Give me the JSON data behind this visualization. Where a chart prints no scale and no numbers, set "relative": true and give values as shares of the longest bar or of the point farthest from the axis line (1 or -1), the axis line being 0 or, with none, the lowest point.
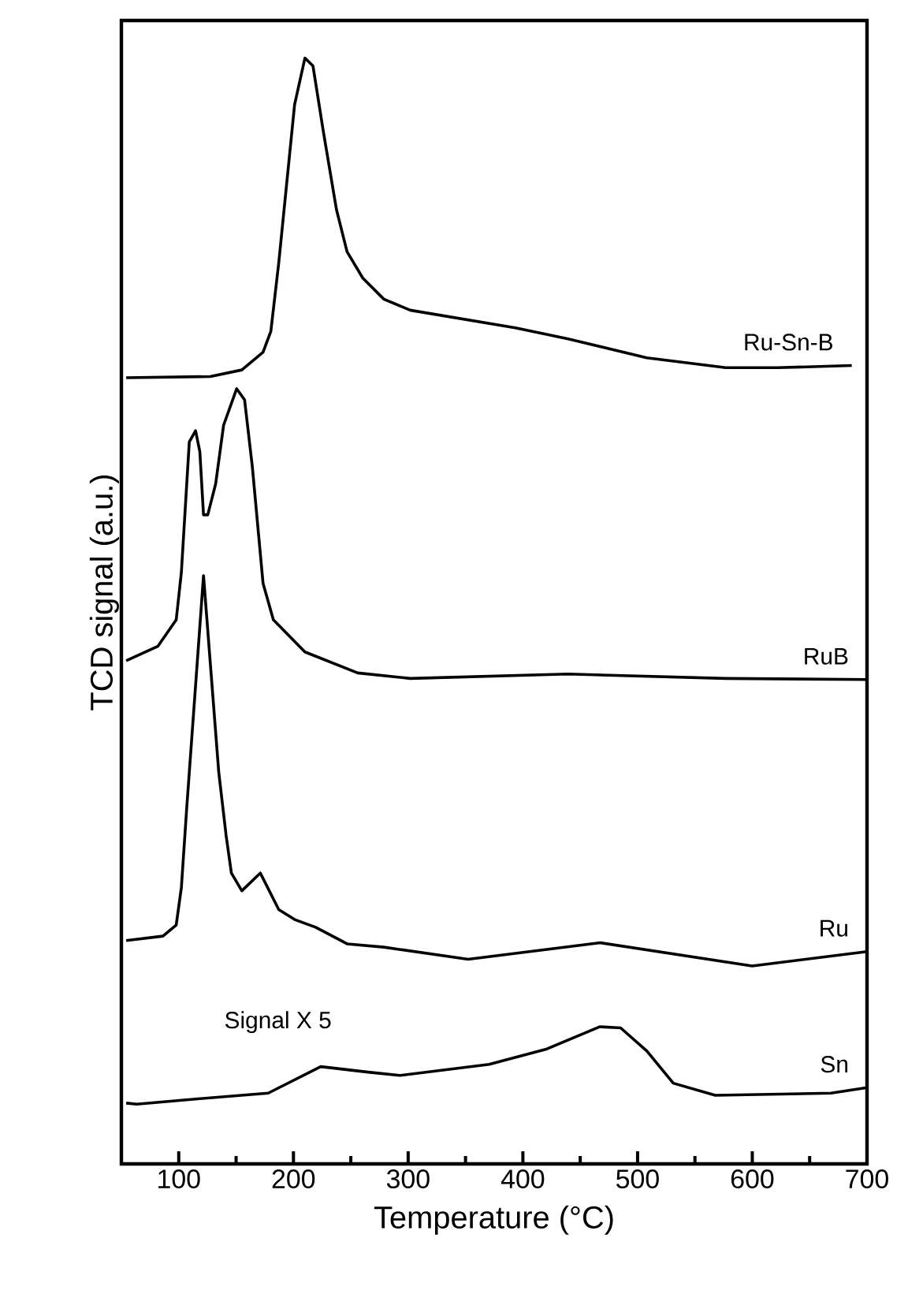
{
  "chart_data": {
    "type": "line",
    "relative": true,
    "xlabel": "Temperature (°C)",
    "ylabel": "TCD signal (a.u.)",
    "xlim": [
      50,
      700
    ],
    "xticks": [
      100,
      200,
      300,
      400,
      500,
      600,
      700
    ],
    "annotations": [
      "Signal X 5"
    ],
    "series": [
      {
        "name": "Ru-Sn-B",
        "color": "#000000",
        "x": [
          54.2,
          127.5,
          155,
          173.5,
          180.3,
          187.2,
          201,
          210,
          217,
          226,
          237.5,
          246.7,
          260.5,
          278.8,
          301.8,
          393.5,
          439.4,
          508,
          576.9,
          622,
          686.7
        ],
        "values": [
          0.711,
          0.712,
          0.718,
          0.734,
          0.753,
          0.815,
          0.958,
          1.0,
          0.993,
          0.934,
          0.863,
          0.825,
          0.801,
          0.782,
          0.772,
          0.756,
          0.746,
          0.729,
          0.72,
          0.72,
          0.722
        ]
      },
      {
        "name": "RuB",
        "color": "#000000",
        "x": [
          54.2,
          81.7,
          97.8,
          102.3,
          109.2,
          114.7,
          118.4,
          121.6,
          125.3,
          132.2,
          139.1,
          150.5,
          157.4,
          164.2,
          173.5,
          182.5,
          210,
          256,
          301.8,
          439.3,
          576.9,
          700
        ],
        "values": [
          0.455,
          0.468,
          0.492,
          0.535,
          0.653,
          0.663,
          0.644,
          0.587,
          0.587,
          0.615,
          0.668,
          0.701,
          0.691,
          0.63,
          0.525,
          0.492,
          0.463,
          0.444,
          0.439,
          0.443,
          0.439,
          0.438
        ]
      },
      {
        "name": "Ru",
        "color": "#000000",
        "x": [
          54.2,
          86.2,
          97.8,
          102.3,
          106.9,
          109.2,
          121.6,
          134.9,
          141.3,
          145.9,
          155,
          171.1,
          187.2,
          201,
          219.3,
          246.8,
          278.8,
          352.3,
          467.6,
          599.9,
          700
        ],
        "values": [
          0.202,
          0.206,
          0.216,
          0.25,
          0.321,
          0.354,
          0.532,
          0.354,
          0.297,
          0.263,
          0.247,
          0.263,
          0.23,
          0.221,
          0.214,
          0.199,
          0.196,
          0.185,
          0.2,
          0.179,
          0.192
        ]
      },
      {
        "name": "Sn",
        "color": "#000000",
        "x": [
          54.2,
          63.4,
          118.4,
          178,
          223.8,
          265.1,
          292.6,
          370.6,
          421,
          466.9,
          485.2,
          508.1,
          531.1,
          567.7,
          668.6,
          700
        ],
        "values": [
          0.055,
          0.054,
          0.059,
          0.064,
          0.088,
          0.083,
          0.08,
          0.09,
          0.104,
          0.124,
          0.123,
          0.102,
          0.073,
          0.062,
          0.064,
          0.069
        ]
      }
    ]
  }
}
